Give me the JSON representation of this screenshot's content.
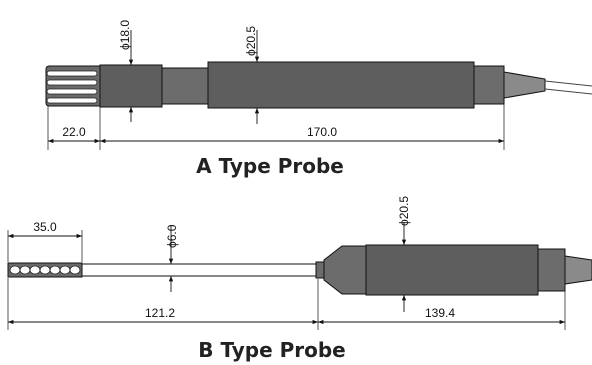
{
  "probe_a": {
    "caption": "A Type Probe",
    "diameter_cap": "ϕ18.0",
    "diameter_body": "ϕ20.5",
    "length_cap": "22.0",
    "length_body": "170.0"
  },
  "probe_b": {
    "caption": "B Type Probe",
    "diameter_tube": "ϕ6.0",
    "diameter_body": "ϕ20.5",
    "length_tip": "35.0",
    "length_tube": "121.2",
    "length_body": "139.4"
  }
}
